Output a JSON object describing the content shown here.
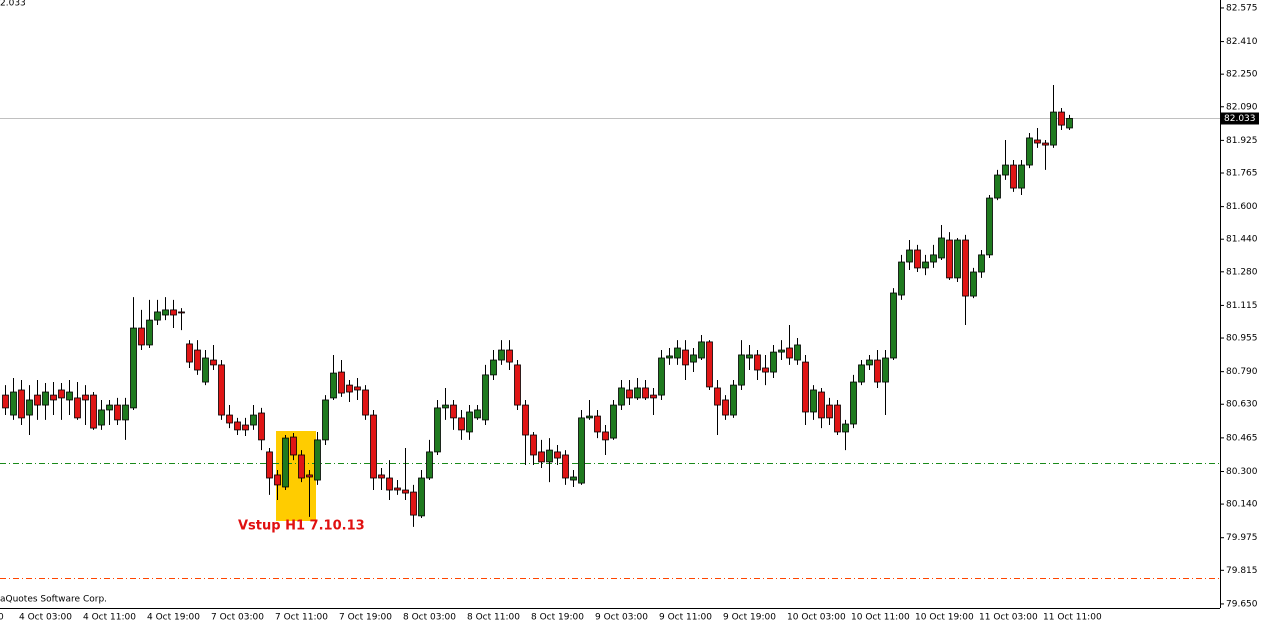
{
  "chart_data": {
    "type": "candlestick",
    "top_left_label": "2.033",
    "left_edge_label": "0",
    "copyright": "aQuotes Software Corp.",
    "annotation": "Vstup H1 7.10.13",
    "up_color": "#1f7a1f",
    "down_color": "#e01515",
    "last_price": 82.033,
    "hlines": [
      {
        "value": 80.342,
        "color": "#1a8a1a"
      },
      {
        "value": 79.778,
        "color": "#ff4500"
      }
    ],
    "ylim": [
      79.63,
      82.614
    ],
    "yticks": [
      82.575,
      {
        "value": 82.41,
        "label": "82.410"
      },
      {
        "value": 82.25,
        "label": "82.250"
      },
      {
        "value": 82.09,
        "label": "82.090"
      },
      81.925,
      81.765,
      {
        "value": 81.6,
        "label": "81.600"
      },
      {
        "value": 81.44,
        "label": "81.440"
      },
      {
        "value": 81.28,
        "label": "81.280"
      },
      81.115,
      80.955,
      {
        "value": 80.79,
        "label": "80.790"
      },
      {
        "value": 80.63,
        "label": "80.630"
      },
      80.465,
      {
        "value": 80.3,
        "label": "80.300"
      },
      {
        "value": 80.14,
        "label": "80.140"
      },
      79.975,
      79.815,
      {
        "value": 79.65,
        "label": "79.650"
      }
    ],
    "categories": [
      null,
      null,
      "4 Oct 03:00",
      null,
      null,
      null,
      null,
      null,
      null,
      null,
      "4 Oct 11:00",
      null,
      null,
      null,
      null,
      null,
      null,
      null,
      "4 Oct 19:00",
      null,
      null,
      null,
      null,
      null,
      null,
      null,
      "7 Oct 03:00",
      null,
      null,
      null,
      null,
      null,
      null,
      null,
      "7 Oct 11:00",
      null,
      null,
      null,
      null,
      null,
      null,
      null,
      "7 Oct 19:00",
      null,
      null,
      null,
      null,
      null,
      null,
      null,
      "8 Oct 03:00",
      null,
      null,
      null,
      null,
      null,
      null,
      null,
      "8 Oct 11:00",
      null,
      null,
      null,
      null,
      null,
      null,
      null,
      "8 Oct 19:00",
      null,
      null,
      null,
      null,
      null,
      null,
      null,
      "9 Oct 03:00",
      null,
      null,
      null,
      null,
      null,
      null,
      null,
      "9 Oct 11:00",
      null,
      null,
      null,
      null,
      null,
      null,
      null,
      "9 Oct 19:00",
      null,
      null,
      null,
      null,
      null,
      null,
      null,
      "10 Oct 03:00",
      null,
      null,
      null,
      null,
      null,
      null,
      null,
      "10 Oct 11:00",
      null,
      null,
      null,
      null,
      null,
      null,
      null,
      "10 Oct 19:00",
      null,
      null,
      null,
      null,
      null,
      null,
      null,
      "11 Oct 03:00",
      null,
      null,
      null,
      null,
      null,
      null,
      null,
      "11 Oct 11:00",
      null,
      null,
      null
    ],
    "open": [
      80.675,
      80.577,
      80.7,
      80.577,
      80.675,
      80.626,
      80.675,
      80.7,
      80.651,
      80.661,
      80.675,
      80.675,
      80.528,
      80.602,
      80.626,
      80.553,
      80.612,
      81.004,
      80.921,
      81.043,
      81.068,
      81.093,
      81.083,
      80.926,
      80.896,
      80.739,
      80.847,
      80.823,
      80.577,
      80.543,
      80.528,
      80.528,
      80.587,
      80.396,
      80.283,
      80.224,
      80.469,
      80.381,
      80.283,
      80.258,
      80.455,
      80.661,
      80.788,
      80.724,
      80.715,
      80.7,
      80.577,
      80.283,
      80.268,
      80.219,
      80.209,
      80.199,
      80.082,
      80.268,
      80.396,
      80.612,
      80.626,
      80.563,
      80.494,
      80.563,
      80.553,
      80.774,
      80.847,
      80.896,
      80.823,
      80.626,
      80.479,
      80.396,
      80.347,
      80.396,
      80.381,
      80.258,
      80.243,
      80.563,
      80.572,
      80.494,
      80.464,
      80.626,
      80.7,
      80.661,
      80.71,
      80.675,
      80.675,
      80.857,
      80.857,
      80.896,
      80.837,
      80.857,
      80.936,
      80.71,
      80.651,
      80.577,
      80.724,
      80.857,
      80.872,
      80.808,
      80.788,
      80.886,
      80.906,
      80.847,
      80.837,
      80.592,
      80.69,
      80.626,
      80.626,
      80.494,
      80.533,
      80.739,
      80.823,
      80.847,
      80.739,
      80.857,
      81.166,
      81.328,
      81.387,
      81.299,
      81.328,
      81.348,
      81.436,
      81.25,
      81.436,
      81.161,
      81.279,
      81.363,
      81.642,
      81.755,
      81.804,
      81.691,
      81.804,
      81.927,
      81.912,
      81.902,
      82.064,
      81.986
    ],
    "high": [
      80.724,
      80.759,
      80.749,
      80.724,
      80.749,
      80.734,
      80.739,
      80.734,
      80.749,
      80.739,
      80.724,
      80.69,
      80.651,
      80.651,
      80.661,
      80.661,
      81.156,
      81.093,
      81.142,
      81.142,
      81.156,
      81.142,
      81.102,
      80.945,
      80.945,
      80.896,
      80.921,
      80.847,
      80.626,
      80.563,
      80.563,
      80.626,
      80.612,
      80.415,
      80.307,
      80.479,
      80.489,
      80.405,
      80.307,
      80.494,
      80.675,
      80.872,
      80.847,
      80.749,
      80.759,
      80.724,
      80.602,
      80.317,
      80.356,
      80.258,
      80.415,
      80.234,
      80.307,
      80.455,
      80.651,
      80.71,
      80.651,
      80.602,
      80.626,
      80.626,
      80.823,
      80.896,
      80.945,
      80.945,
      80.847,
      80.651,
      80.494,
      80.455,
      80.464,
      80.43,
      80.405,
      80.307,
      80.602,
      80.651,
      80.602,
      80.528,
      80.651,
      80.749,
      80.749,
      80.759,
      80.749,
      80.71,
      80.896,
      80.906,
      80.945,
      80.945,
      80.906,
      80.97,
      80.945,
      80.749,
      80.675,
      80.749,
      80.945,
      80.921,
      80.896,
      80.872,
      80.921,
      80.945,
      81.019,
      80.955,
      80.872,
      80.724,
      80.71,
      80.661,
      80.651,
      80.553,
      80.774,
      80.847,
      80.872,
      80.896,
      80.896,
      81.2,
      81.363,
      81.436,
      81.412,
      81.363,
      81.412,
      81.51,
      81.475,
      81.446,
      81.461,
      81.299,
      81.387,
      81.657,
      81.78,
      81.927,
      81.829,
      81.829,
      81.961,
      81.986,
      81.927,
      82.197,
      82.084,
      82.05
    ],
    "low": [
      80.577,
      80.553,
      80.528,
      80.479,
      80.553,
      80.553,
      80.577,
      80.553,
      80.577,
      80.553,
      80.528,
      80.504,
      80.504,
      80.528,
      80.528,
      80.455,
      80.602,
      80.896,
      80.906,
      81.019,
      81.043,
      81.004,
      80.994,
      80.808,
      80.774,
      80.724,
      80.798,
      80.553,
      80.513,
      80.479,
      80.474,
      80.504,
      80.405,
      80.185,
      80.16,
      80.209,
      80.356,
      80.248,
      80.077,
      80.234,
      80.43,
      80.651,
      80.666,
      80.641,
      80.651,
      80.553,
      80.209,
      80.209,
      80.16,
      80.185,
      80.16,
      80.028,
      80.072,
      80.258,
      80.381,
      80.553,
      80.504,
      80.455,
      80.455,
      80.553,
      80.528,
      80.749,
      80.823,
      80.798,
      80.602,
      80.332,
      80.332,
      80.317,
      80.248,
      80.332,
      80.234,
      80.224,
      80.234,
      80.553,
      80.464,
      80.381,
      80.455,
      80.602,
      80.626,
      80.651,
      80.651,
      80.577,
      80.651,
      80.823,
      80.823,
      80.749,
      80.788,
      80.847,
      80.7,
      80.479,
      80.553,
      80.563,
      80.7,
      80.798,
      80.749,
      80.724,
      80.759,
      80.847,
      80.823,
      80.823,
      80.528,
      80.553,
      80.513,
      80.528,
      80.479,
      80.405,
      80.513,
      80.724,
      80.798,
      80.71,
      80.577,
      80.847,
      81.142,
      81.289,
      81.279,
      81.264,
      81.299,
      81.338,
      81.24,
      81.23,
      81.019,
      81.151,
      81.25,
      81.348,
      81.632,
      81.731,
      81.672,
      81.657,
      81.789,
      81.888,
      81.78,
      81.888,
      81.976,
      81.976
    ],
    "close": [
      80.612,
      80.69,
      80.563,
      80.651,
      80.626,
      80.69,
      80.651,
      80.661,
      80.69,
      80.563,
      80.651,
      80.513,
      80.602,
      80.626,
      80.553,
      80.626,
      81.004,
      80.921,
      81.043,
      81.083,
      81.093,
      81.068,
      81.078,
      80.837,
      80.798,
      80.857,
      80.823,
      80.577,
      80.538,
      80.504,
      80.504,
      80.577,
      80.455,
      80.268,
      80.234,
      80.464,
      80.381,
      80.268,
      80.273,
      80.455,
      80.651,
      80.783,
      80.685,
      80.69,
      80.7,
      80.577,
      80.268,
      80.268,
      80.209,
      80.209,
      80.194,
      80.086,
      80.268,
      80.396,
      80.612,
      80.626,
      80.563,
      80.504,
      80.592,
      80.602,
      80.774,
      80.847,
      80.896,
      80.837,
      80.626,
      80.479,
      80.381,
      80.347,
      80.405,
      80.366,
      80.268,
      80.273,
      80.563,
      80.572,
      80.494,
      80.455,
      80.626,
      80.71,
      80.661,
      80.71,
      80.661,
      80.661,
      80.857,
      80.867,
      80.906,
      80.823,
      80.872,
      80.936,
      80.715,
      80.626,
      80.577,
      80.724,
      80.872,
      80.872,
      80.798,
      80.788,
      80.886,
      80.896,
      80.857,
      80.921,
      80.592,
      80.7,
      80.563,
      80.563,
      80.494,
      80.533,
      80.739,
      80.823,
      80.847,
      80.739,
      80.857,
      81.176,
      81.328,
      81.387,
      81.299,
      81.328,
      81.363,
      81.446,
      81.25,
      81.436,
      81.161,
      81.279,
      81.363,
      81.642,
      81.755,
      81.804,
      81.691,
      81.804,
      81.937,
      81.912,
      81.902,
      82.064,
      82.0,
      82.033
    ]
  }
}
